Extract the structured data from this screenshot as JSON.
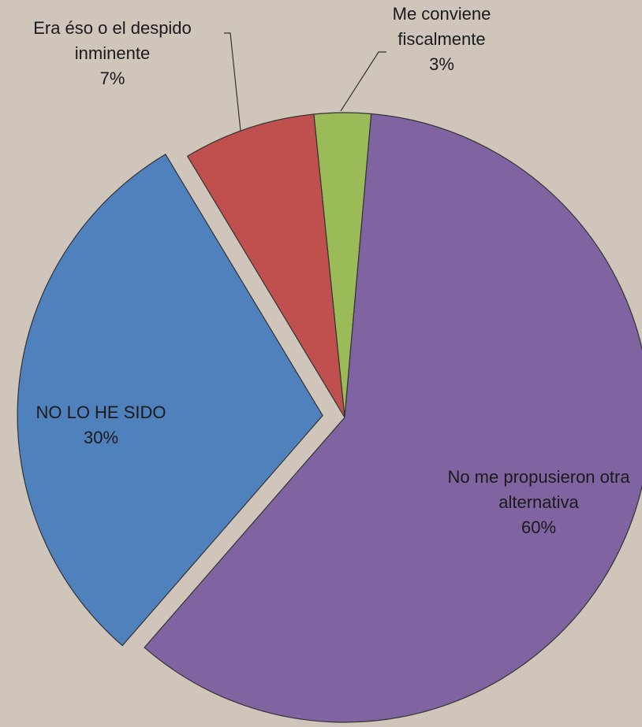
{
  "chart_data": {
    "type": "pie",
    "categories": [
      "No me propusieron otra alternativa",
      "NO LO HE SIDO",
      "Era éso o el despido inminente",
      "Me conviene fiscalmente"
    ],
    "values": [
      60,
      30,
      7,
      3
    ],
    "value_labels": [
      "60%",
      "30%",
      "7%",
      "3%"
    ],
    "colors": [
      "#8064a2",
      "#4f81bd",
      "#c0504d",
      "#9bbb59"
    ],
    "explode": [
      false,
      true,
      false,
      false
    ]
  }
}
